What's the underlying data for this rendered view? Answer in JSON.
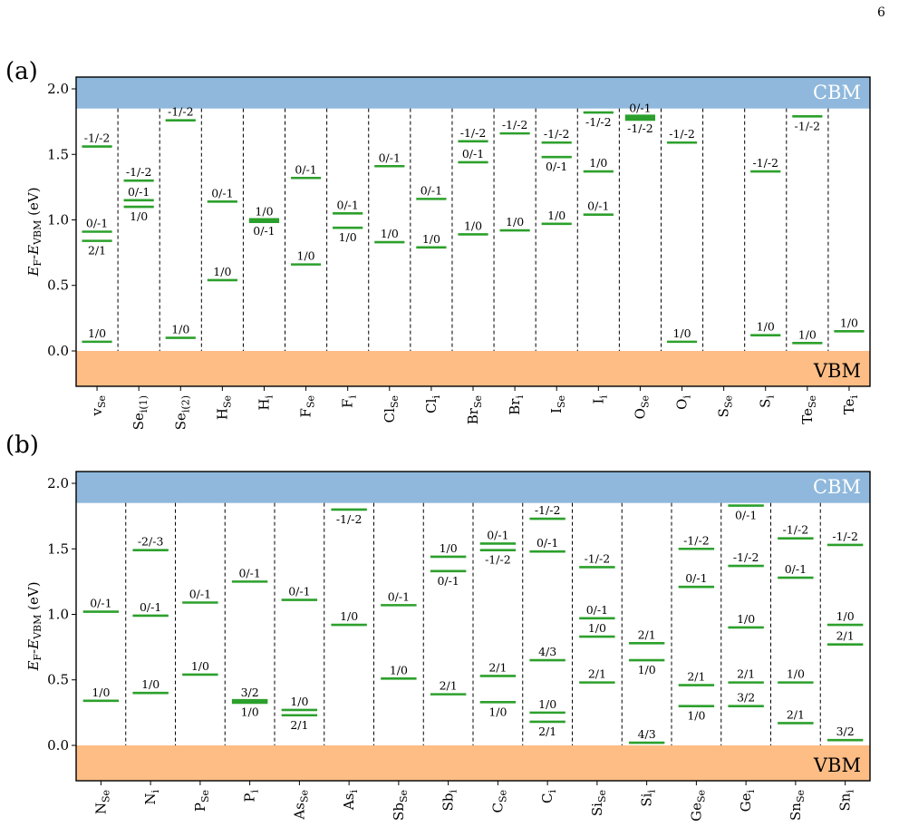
{
  "page_number": "6",
  "colors": {
    "cbm": "#8fb8dc",
    "vbm": "#fdbd85",
    "level": "#2ca02c",
    "cbm_text": "#ffffff",
    "vbm_text": "#000000"
  },
  "chart_data": [
    {
      "type": "transition-level diagram",
      "panel": "(a)",
      "ylabel": "E_F-E_VBM (eV)",
      "ylim": [
        -0.27,
        2.09
      ],
      "yticks": [
        "0.0",
        "0.5",
        "1.0",
        "1.5",
        "2.0"
      ],
      "yticks_values": [
        0.0,
        0.5,
        1.0,
        1.5,
        2.0
      ],
      "band_gap": 1.85,
      "band_labels": {
        "cbm": "CBM",
        "vbm": "VBM"
      },
      "defects": [
        {
          "label": "vSe",
          "main": "v",
          "sub": "Se",
          "levels": [
            {
              "e": 1.56,
              "label": "-1/-2",
              "pos": "above"
            },
            {
              "e": 0.91,
              "label": "0/-1",
              "pos": "above"
            },
            {
              "e": 0.84,
              "label": "2/1",
              "pos": "below"
            },
            {
              "e": 0.07,
              "label": "1/0",
              "pos": "above"
            }
          ]
        },
        {
          "label": "Sei(1)",
          "main": "Se",
          "sub": "i(1)",
          "levels": [
            {
              "e": 1.3,
              "label": "-1/-2",
              "pos": "above"
            },
            {
              "e": 1.15,
              "label": "0/-1",
              "pos": "above"
            },
            {
              "e": 1.1,
              "label": "1/0",
              "pos": "below"
            }
          ]
        },
        {
          "label": "Sei(2)",
          "main": "Se",
          "sub": "i(2)",
          "levels": [
            {
              "e": 1.76,
              "label": "-1/-2",
              "pos": "above"
            },
            {
              "e": 0.1,
              "label": "1/0",
              "pos": "above"
            }
          ]
        },
        {
          "label": "HSe",
          "main": "H",
          "sub": "Se",
          "levels": [
            {
              "e": 1.14,
              "label": "0/-1",
              "pos": "above"
            },
            {
              "e": 0.54,
              "label": "1/0",
              "pos": "above"
            }
          ]
        },
        {
          "label": "Hi",
          "main": "H",
          "sub": "i",
          "levels": [
            {
              "e": 1.0,
              "label": "1/0",
              "pos": "above",
              "thick": true
            },
            {
              "e": 0.99,
              "label": "0/-1",
              "pos": "below",
              "thick": true
            }
          ]
        },
        {
          "label": "FSe",
          "main": "F",
          "sub": "Se",
          "levels": [
            {
              "e": 1.32,
              "label": "0/-1",
              "pos": "above"
            },
            {
              "e": 0.66,
              "label": "1/0",
              "pos": "above"
            }
          ]
        },
        {
          "label": "Fi",
          "main": "F",
          "sub": "i",
          "levels": [
            {
              "e": 1.05,
              "label": "0/-1",
              "pos": "above"
            },
            {
              "e": 0.94,
              "label": "1/0",
              "pos": "below"
            }
          ]
        },
        {
          "label": "ClSe",
          "main": "Cl",
          "sub": "Se",
          "levels": [
            {
              "e": 1.41,
              "label": "0/-1",
              "pos": "above"
            },
            {
              "e": 0.83,
              "label": "1/0",
              "pos": "above"
            }
          ]
        },
        {
          "label": "Cli",
          "main": "Cl",
          "sub": "i",
          "levels": [
            {
              "e": 1.16,
              "label": "0/-1",
              "pos": "above"
            },
            {
              "e": 0.79,
              "label": "1/0",
              "pos": "above"
            }
          ]
        },
        {
          "label": "BrSe",
          "main": "Br",
          "sub": "Se",
          "levels": [
            {
              "e": 1.6,
              "label": "-1/-2",
              "pos": "above"
            },
            {
              "e": 1.44,
              "label": "0/-1",
              "pos": "above"
            },
            {
              "e": 0.89,
              "label": "1/0",
              "pos": "above"
            }
          ]
        },
        {
          "label": "Bri",
          "main": "Br",
          "sub": "i",
          "levels": [
            {
              "e": 1.66,
              "label": "-1/-2",
              "pos": "above"
            },
            {
              "e": 0.92,
              "label": "1/0",
              "pos": "above"
            }
          ]
        },
        {
          "label": "ISe",
          "main": "I",
          "sub": "Se",
          "levels": [
            {
              "e": 1.59,
              "label": "-1/-2",
              "pos": "above"
            },
            {
              "e": 1.48,
              "label": "0/-1",
              "pos": "below"
            },
            {
              "e": 0.97,
              "label": "1/0",
              "pos": "above"
            }
          ]
        },
        {
          "label": "Ii",
          "main": "I",
          "sub": "i",
          "levels": [
            {
              "e": 1.82,
              "label": "-1/-2",
              "pos": "below"
            },
            {
              "e": 1.37,
              "label": "1/0",
              "pos": "above"
            },
            {
              "e": 1.04,
              "label": "0/-1",
              "pos": "above"
            }
          ]
        },
        {
          "label": "OSe",
          "main": "O",
          "sub": "Se",
          "levels": [
            {
              "e": 1.79,
              "label": "0/-1",
              "pos": "above",
              "thick": true
            },
            {
              "e": 1.77,
              "label": "-1/-2",
              "pos": "below",
              "thick": true
            }
          ]
        },
        {
          "label": "Oi",
          "main": "O",
          "sub": "i",
          "levels": [
            {
              "e": 1.59,
              "label": "-1/-2",
              "pos": "above"
            },
            {
              "e": 0.07,
              "label": "1/0",
              "pos": "above"
            }
          ]
        },
        {
          "label": "SSe",
          "main": "S",
          "sub": "Se",
          "levels": []
        },
        {
          "label": "Si",
          "main": "S",
          "sub": "i",
          "levels": [
            {
              "e": 1.37,
              "label": "-1/-2",
              "pos": "above"
            },
            {
              "e": 0.12,
              "label": "1/0",
              "pos": "above"
            }
          ]
        },
        {
          "label": "TeSe",
          "main": "Te",
          "sub": "Se",
          "levels": [
            {
              "e": 1.79,
              "label": "-1/-2",
              "pos": "below"
            },
            {
              "e": 0.06,
              "label": "1/0",
              "pos": "above"
            }
          ]
        },
        {
          "label": "Tei",
          "main": "Te",
          "sub": "i",
          "levels": [
            {
              "e": 0.15,
              "label": "1/0",
              "pos": "above"
            }
          ]
        }
      ]
    },
    {
      "type": "transition-level diagram",
      "panel": "(b)",
      "ylabel": "E_F-E_VBM (eV)",
      "ylim": [
        -0.27,
        2.09
      ],
      "yticks": [
        "0.0",
        "0.5",
        "1.0",
        "1.5",
        "2.0"
      ],
      "yticks_values": [
        0.0,
        0.5,
        1.0,
        1.5,
        2.0
      ],
      "band_gap": 1.85,
      "band_labels": {
        "cbm": "CBM",
        "vbm": "VBM"
      },
      "defects": [
        {
          "label": "NSe",
          "main": "N",
          "sub": "Se",
          "levels": [
            {
              "e": 1.02,
              "label": "0/-1",
              "pos": "above"
            },
            {
              "e": 0.34,
              "label": "1/0",
              "pos": "above"
            }
          ]
        },
        {
          "label": "Ni",
          "main": "N",
          "sub": "i",
          "levels": [
            {
              "e": 1.49,
              "label": "-2/-3",
              "pos": "above"
            },
            {
              "e": 0.99,
              "label": "0/-1",
              "pos": "above"
            },
            {
              "e": 0.4,
              "label": "1/0",
              "pos": "above"
            }
          ]
        },
        {
          "label": "PSe",
          "main": "P",
          "sub": "Se",
          "levels": [
            {
              "e": 1.09,
              "label": "0/-1",
              "pos": "above"
            },
            {
              "e": 0.54,
              "label": "1/0",
              "pos": "above"
            }
          ]
        },
        {
          "label": "Pi",
          "main": "P",
          "sub": "i",
          "levels": [
            {
              "e": 1.25,
              "label": "0/-1",
              "pos": "above"
            },
            {
              "e": 0.34,
              "label": "3/2",
              "pos": "above",
              "thick": true
            },
            {
              "e": 0.33,
              "label": "1/0",
              "pos": "below",
              "thick": true
            }
          ]
        },
        {
          "label": "AsSe",
          "main": "As",
          "sub": "Se",
          "levels": [
            {
              "e": 1.11,
              "label": "0/-1",
              "pos": "above"
            },
            {
              "e": 0.27,
              "label": "1/0",
              "pos": "above"
            },
            {
              "e": 0.23,
              "label": "2/1",
              "pos": "below"
            }
          ]
        },
        {
          "label": "Asi",
          "main": "As",
          "sub": "i",
          "levels": [
            {
              "e": 1.8,
              "label": "-1/-2",
              "pos": "below"
            },
            {
              "e": 0.92,
              "label": "1/0",
              "pos": "above"
            }
          ]
        },
        {
          "label": "SbSe",
          "main": "Sb",
          "sub": "Se",
          "levels": [
            {
              "e": 1.07,
              "label": "0/-1",
              "pos": "above"
            },
            {
              "e": 0.51,
              "label": "1/0",
              "pos": "above"
            }
          ]
        },
        {
          "label": "Sbi",
          "main": "Sb",
          "sub": "i",
          "levels": [
            {
              "e": 1.44,
              "label": "1/0",
              "pos": "above"
            },
            {
              "e": 1.33,
              "label": "0/-1",
              "pos": "below"
            },
            {
              "e": 0.39,
              "label": "2/1",
              "pos": "above"
            }
          ]
        },
        {
          "label": "CSe",
          "main": "C",
          "sub": "Se",
          "levels": [
            {
              "e": 1.54,
              "label": "0/-1",
              "pos": "above"
            },
            {
              "e": 1.49,
              "label": "-1/-2",
              "pos": "below"
            },
            {
              "e": 0.53,
              "label": "2/1",
              "pos": "above"
            },
            {
              "e": 0.33,
              "label": "1/0",
              "pos": "below"
            }
          ]
        },
        {
          "label": "Ci",
          "main": "C",
          "sub": "i",
          "levels": [
            {
              "e": 1.73,
              "label": "-1/-2",
              "pos": "above"
            },
            {
              "e": 1.48,
              "label": "0/-1",
              "pos": "above"
            },
            {
              "e": 0.65,
              "label": "4/3",
              "pos": "above"
            },
            {
              "e": 0.25,
              "label": "1/0",
              "pos": "above"
            },
            {
              "e": 0.18,
              "label": "2/1",
              "pos": "below"
            }
          ]
        },
        {
          "label": "SiSe",
          "main": "Si",
          "sub": "Se",
          "levels": [
            {
              "e": 1.36,
              "label": "-1/-2",
              "pos": "above"
            },
            {
              "e": 0.97,
              "label": "0/-1",
              "pos": "above"
            },
            {
              "e": 0.83,
              "label": "1/0",
              "pos": "above"
            },
            {
              "e": 0.48,
              "label": "2/1",
              "pos": "above"
            }
          ]
        },
        {
          "label": "Sii",
          "main": "Si",
          "sub": "i",
          "levels": [
            {
              "e": 0.78,
              "label": "2/1",
              "pos": "above"
            },
            {
              "e": 0.65,
              "label": "1/0",
              "pos": "below"
            },
            {
              "e": 0.02,
              "label": "4/3",
              "pos": "above"
            }
          ]
        },
        {
          "label": "GeSe",
          "main": "Ge",
          "sub": "Se",
          "levels": [
            {
              "e": 1.5,
              "label": "-1/-2",
              "pos": "above"
            },
            {
              "e": 1.21,
              "label": "0/-1",
              "pos": "above"
            },
            {
              "e": 0.46,
              "label": "2/1",
              "pos": "above"
            },
            {
              "e": 0.3,
              "label": "1/0",
              "pos": "below"
            }
          ]
        },
        {
          "label": "Gei",
          "main": "Ge",
          "sub": "i",
          "levels": [
            {
              "e": 1.83,
              "label": "0/-1",
              "pos": "below"
            },
            {
              "e": 1.37,
              "label": "-1/-2",
              "pos": "above"
            },
            {
              "e": 0.9,
              "label": "1/0",
              "pos": "above"
            },
            {
              "e": 0.48,
              "label": "2/1",
              "pos": "above"
            },
            {
              "e": 0.3,
              "label": "3/2",
              "pos": "above"
            }
          ]
        },
        {
          "label": "SnSe",
          "main": "Sn",
          "sub": "Se",
          "levels": [
            {
              "e": 1.58,
              "label": "-1/-2",
              "pos": "above"
            },
            {
              "e": 1.28,
              "label": "0/-1",
              "pos": "above"
            },
            {
              "e": 0.48,
              "label": "1/0",
              "pos": "above"
            },
            {
              "e": 0.17,
              "label": "2/1",
              "pos": "above"
            }
          ]
        },
        {
          "label": "Sni",
          "main": "Sn",
          "sub": "i",
          "levels": [
            {
              "e": 1.53,
              "label": "-1/-2",
              "pos": "above"
            },
            {
              "e": 0.92,
              "label": "1/0",
              "pos": "above"
            },
            {
              "e": 0.77,
              "label": "2/1",
              "pos": "above"
            },
            {
              "e": 0.04,
              "label": "3/2",
              "pos": "above"
            }
          ]
        }
      ]
    }
  ]
}
